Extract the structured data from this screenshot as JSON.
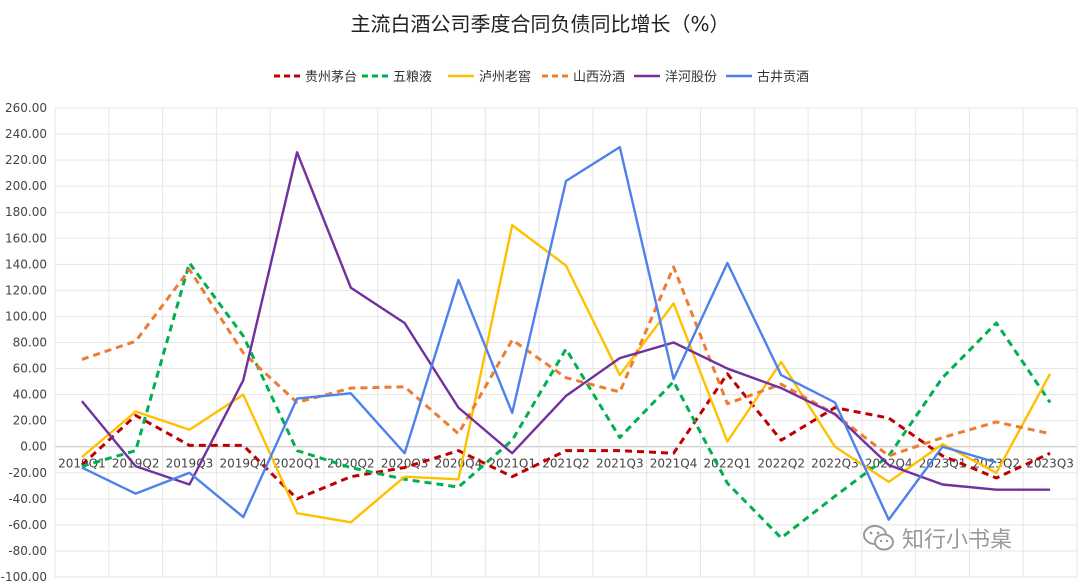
{
  "chart_data": {
    "type": "line",
    "title": "主流白酒公司季度合同负债同比增长（%）",
    "categories": [
      "2019Q1",
      "2019Q2",
      "2019Q3",
      "2019Q4",
      "2020Q1",
      "2020Q2",
      "2020Q3",
      "2020Q4",
      "2021Q1",
      "2021Q2",
      "2021Q3",
      "2021Q4",
      "2022Q1",
      "2022Q2",
      "2022Q3",
      "2022Q4",
      "2023Q1",
      "2023Q2",
      "2023Q3"
    ],
    "ylim": [
      -100,
      260
    ],
    "yticks": [
      "260.00",
      "240.00",
      "220.00",
      "200.00",
      "180.00",
      "160.00",
      "140.00",
      "120.00",
      "100.00",
      "80.00",
      "60.00",
      "40.00",
      "20.00",
      "0.00",
      "-20.00",
      "-40.00",
      "-60.00",
      "-80.00",
      "-100.00"
    ],
    "grid": true,
    "legend_position": "top-center",
    "series": [
      {
        "name": "贵州茅台",
        "color": "#c00000",
        "dash": "dashed",
        "values": [
          -14,
          24,
          1,
          1,
          -40,
          -23,
          -16,
          -3,
          -23,
          -3,
          -3,
          -5,
          56,
          5,
          30,
          22,
          -7,
          -24,
          -5
        ]
      },
      {
        "name": "五粮液",
        "color": "#00b050",
        "dash": "dashed",
        "values": [
          -15,
          -3,
          141,
          85,
          -3,
          -16,
          -25,
          -31,
          5,
          75,
          7,
          50,
          -28,
          -70,
          -38,
          -7,
          53,
          95,
          34
        ]
      },
      {
        "name": "泸州老窖",
        "color": "#ffc000",
        "dash": "solid",
        "values": [
          -8,
          27,
          13,
          40,
          -51,
          -58,
          -23,
          -25,
          170,
          139,
          55,
          110,
          4,
          65,
          0,
          -27,
          2,
          -20,
          56
        ]
      },
      {
        "name": "山西汾酒",
        "color": "#ed7d31",
        "dash": "dashed",
        "values": [
          67,
          81,
          136,
          72,
          34,
          45,
          46,
          10,
          82,
          53,
          42,
          138,
          33,
          48,
          25,
          -7,
          7,
          19,
          10
        ]
      },
      {
        "name": "洋河股份",
        "color": "#7030a0",
        "dash": "solid",
        "values": [
          35,
          -15,
          -29,
          51,
          226,
          122,
          95,
          30,
          -5,
          39,
          68,
          80,
          60,
          45,
          25,
          -14,
          -29,
          -33,
          -33
        ]
      },
      {
        "name": "古井贡酒",
        "color": "#4f81ed",
        "dash": "solid",
        "values": [
          -16,
          -36,
          -20,
          -54,
          37,
          41,
          -5,
          128,
          26,
          204,
          230,
          52,
          141,
          55,
          34,
          -56,
          0,
          -12,
          null
        ]
      }
    ]
  },
  "watermark": {
    "text": "知行小书桌",
    "icon": "wechat-icon"
  }
}
